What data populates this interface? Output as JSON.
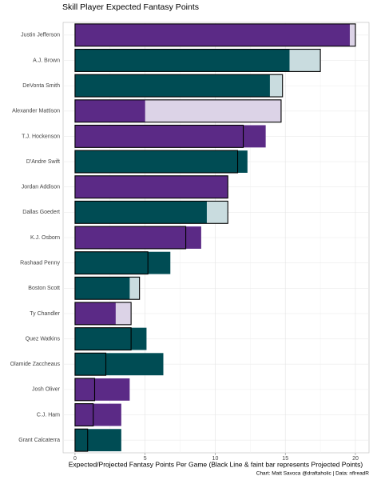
{
  "chart_data": {
    "type": "bar",
    "orientation": "horizontal",
    "title": "Skill Player Expected Fantasy Points",
    "x_label": "Expected/Projected Fantasy Points Per Game (Black Line & faint bar represents Projected Points)",
    "caption": "Chart: Matt Savoca @draftaholic | Data: nflreadR",
    "categories": [
      "Justin Jefferson",
      "A.J. Brown",
      "DeVonta Smith",
      "Alexander Mattison",
      "T.J. Hockenson",
      "D'Andre Swift",
      "Jordan Addison",
      "Dallas Goedert",
      "K.J. Osborn",
      "Rashaad Penny",
      "Boston Scott",
      "Ty Chandler",
      "Quez Watkins",
      "Olamide Zaccheaus",
      "Josh Oliver",
      "C.J. Ham",
      "Grant Calcaterra"
    ],
    "expected": [
      19.6,
      15.3,
      13.9,
      5.0,
      13.6,
      12.3,
      10.9,
      9.4,
      9.0,
      6.8,
      3.9,
      2.9,
      5.1,
      6.3,
      3.9,
      3.3,
      3.3
    ],
    "projected": [
      20.0,
      17.5,
      14.8,
      14.7,
      12.0,
      11.6,
      10.9,
      10.9,
      7.9,
      5.2,
      4.6,
      4.0,
      4.0,
      2.2,
      1.4,
      1.3,
      0.9
    ],
    "colors": [
      "#5b2a86",
      "#004c54",
      "#004c54",
      "#5b2a86",
      "#5b2a86",
      "#004c54",
      "#5b2a86",
      "#004c54",
      "#5b2a86",
      "#004c54",
      "#004c54",
      "#5b2a86",
      "#004c54",
      "#004c54",
      "#5b2a86",
      "#5b2a86",
      "#004c54"
    ],
    "faint_colors": [
      "#dcd3e7",
      "#c9dcdf",
      "#c9dcdf",
      "#dcd3e7",
      "#dcd3e7",
      "#c9dcdf",
      "#dcd3e7",
      "#c9dcdf",
      "#dcd3e7",
      "#c9dcdf",
      "#c9dcdf",
      "#dcd3e7",
      "#c9dcdf",
      "#c9dcdf",
      "#dcd3e7",
      "#dcd3e7",
      "#c9dcdf"
    ],
    "xlim": [
      -0.85,
      20.97
    ],
    "xticks": [
      0,
      5,
      10,
      15,
      20
    ],
    "grid": true
  }
}
